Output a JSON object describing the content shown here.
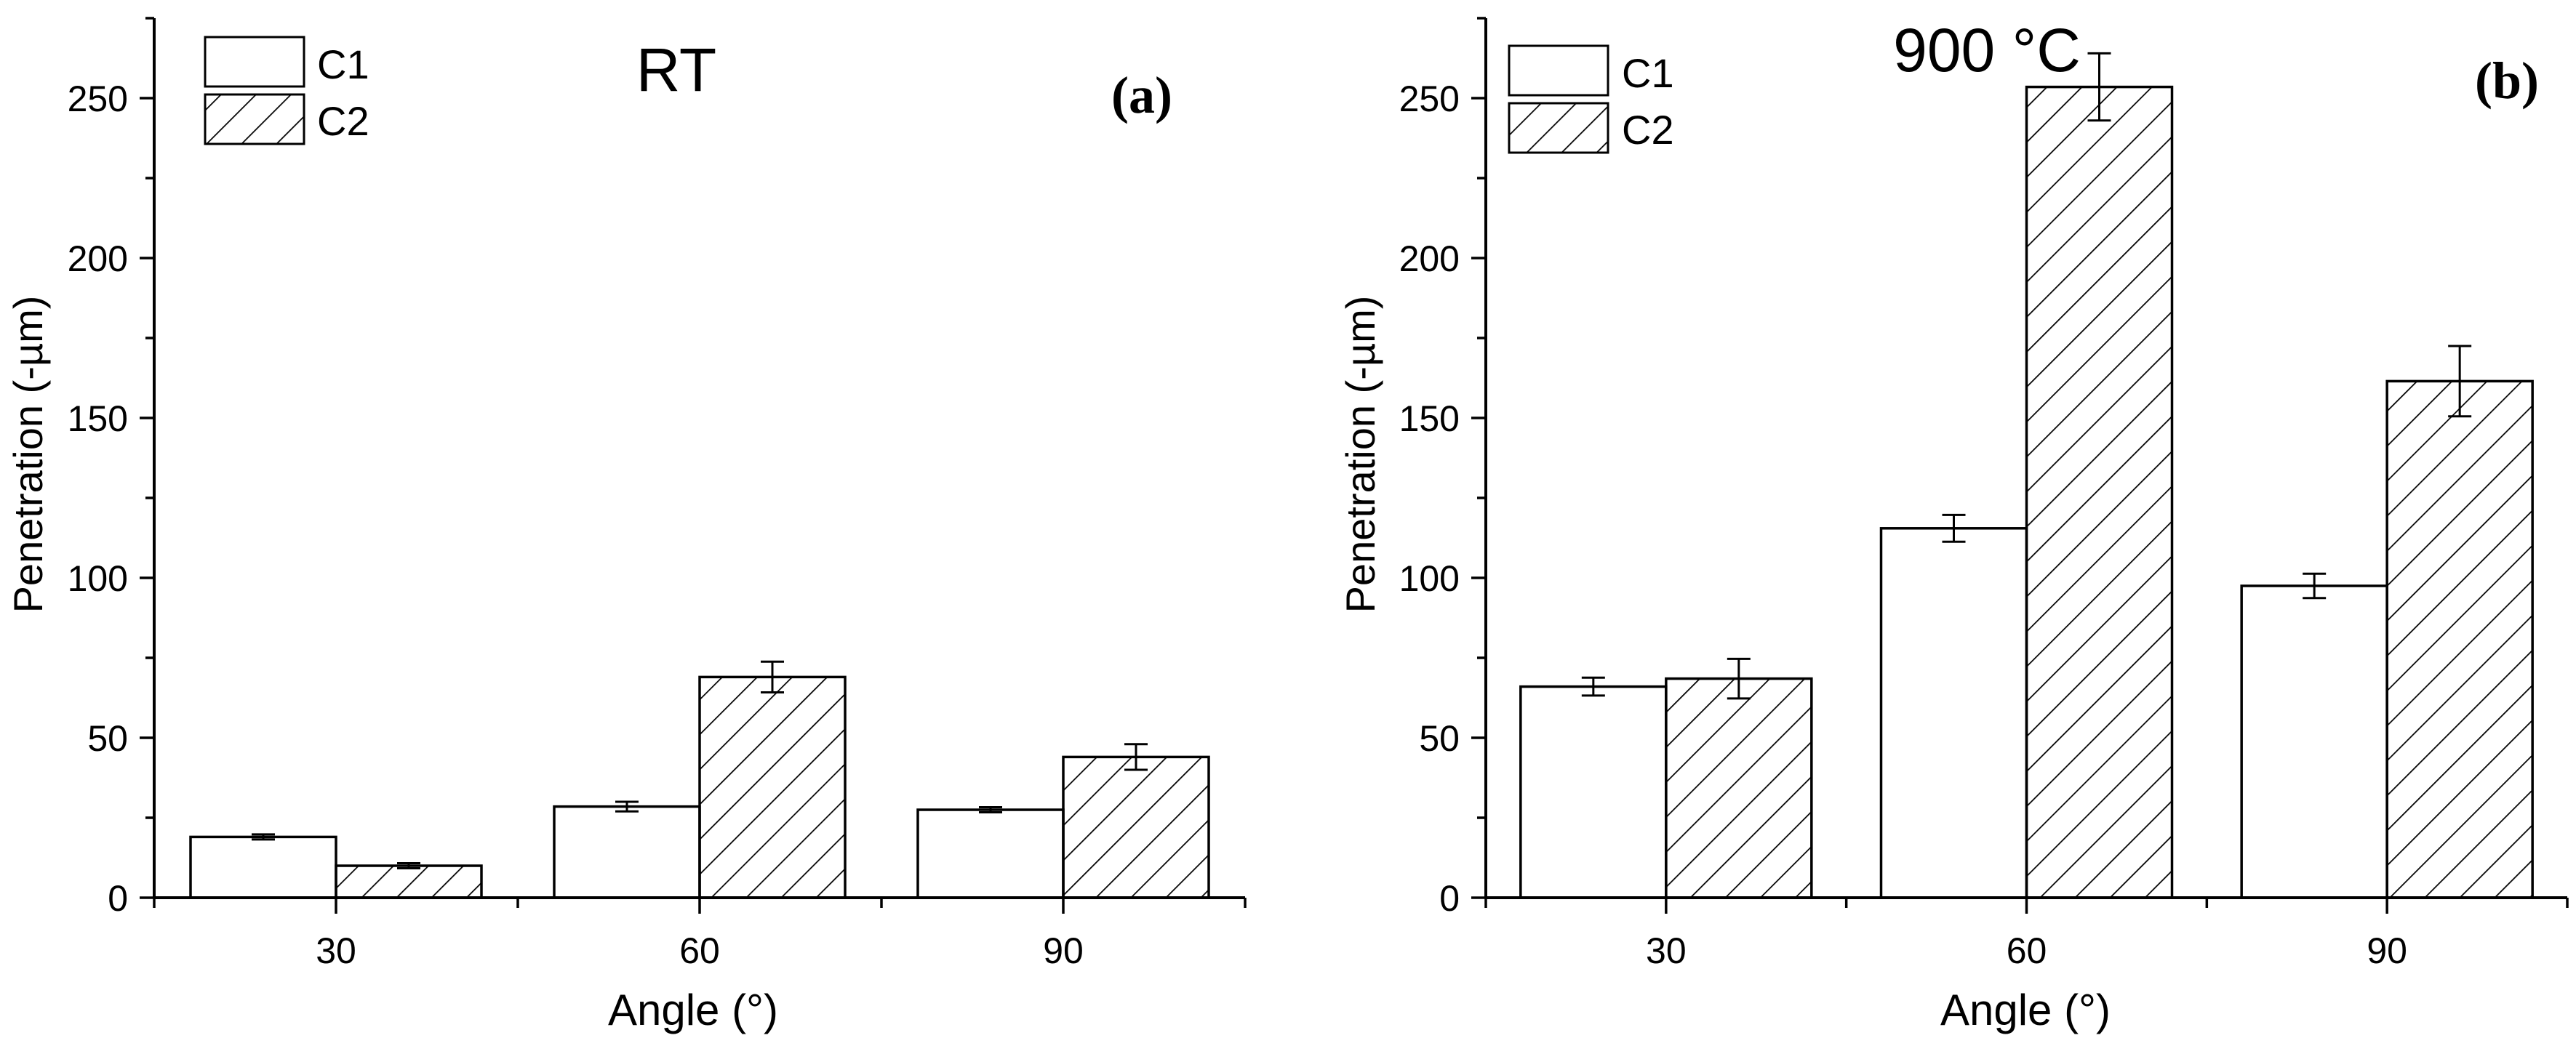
{
  "chart_data": [
    {
      "type": "bar",
      "panel_label": "(a)",
      "title": "RT",
      "xlabel": "Angle (°)",
      "ylabel": "Penetration (-µm)",
      "categories": [
        "30",
        "60",
        "90"
      ],
      "ylim": [
        0,
        275
      ],
      "yticks": [
        0,
        50,
        100,
        150,
        200,
        250
      ],
      "legend_position": "top-left",
      "series": [
        {
          "name": "C1",
          "pattern": "none",
          "values": [
            19,
            28.5,
            27.5
          ],
          "errors": [
            0.8,
            1.5,
            0.8
          ]
        },
        {
          "name": "C2",
          "pattern": "hatch",
          "values": [
            10,
            69,
            44
          ],
          "errors": [
            0.8,
            4.8,
            4.0
          ]
        }
      ]
    },
    {
      "type": "bar",
      "panel_label": "(b)",
      "title": "900 °C",
      "xlabel": "Angle (°)",
      "ylabel": "Penetration (-µm)",
      "categories": [
        "30",
        "60",
        "90"
      ],
      "ylim": [
        0,
        275
      ],
      "yticks": [
        0,
        50,
        100,
        150,
        200,
        250
      ],
      "legend_position": "top-left",
      "series": [
        {
          "name": "C1",
          "pattern": "none",
          "values": [
            66,
            115.5,
            97.5
          ],
          "errors": [
            2.8,
            4.2,
            3.8
          ]
        },
        {
          "name": "C2",
          "pattern": "hatch",
          "values": [
            68.5,
            253.5,
            161.5
          ],
          "errors": [
            6.2,
            10.5,
            11.0
          ]
        }
      ]
    }
  ],
  "colors": {
    "stroke": "#000000",
    "fill": "#ffffff",
    "hatch": "#000000"
  }
}
